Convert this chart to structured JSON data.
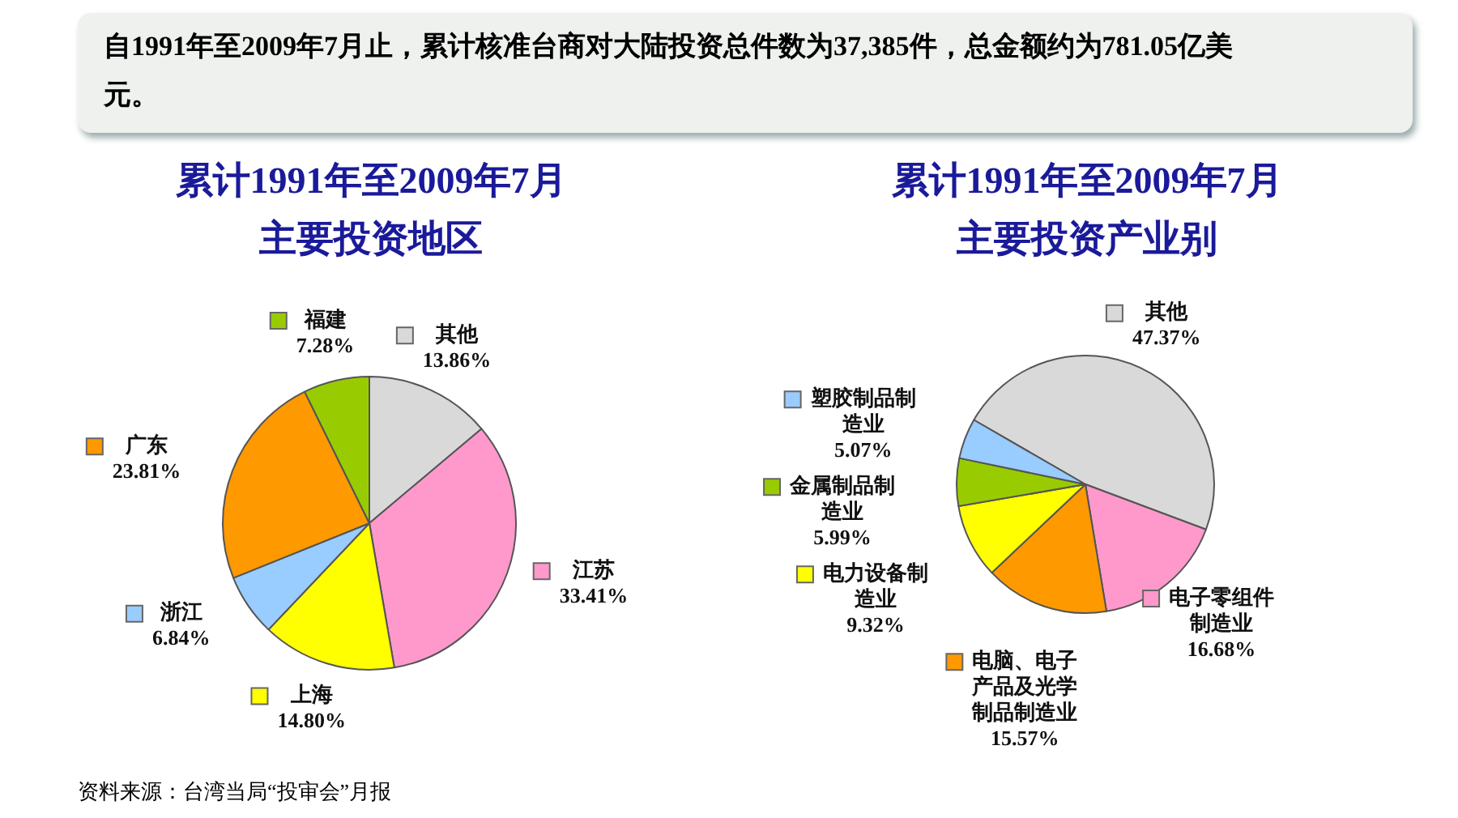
{
  "chart_data": [
    {
      "type": "other",
      "title": "自1991年至2009年7月止，累计核准台商对大陆投资总件数为37,385件，总金额约为781.05亿美元。"
    },
    {
      "type": "pie",
      "title": "累计1991年至2009年7月主要投资地区",
      "categories": [
        "其他",
        "江苏",
        "上海",
        "浙江",
        "广东",
        "福建"
      ],
      "values": [
        13.86,
        33.41,
        14.8,
        6.84,
        23.81,
        7.28
      ],
      "value_labels": [
        "13.86%",
        "33.41%",
        "14.80%",
        "6.84%",
        "23.81%",
        "7.28%"
      ],
      "colors": [
        "#d9d9d9",
        "#ff99cc",
        "#ffff00",
        "#99ccff",
        "#ff9900",
        "#99cc00"
      ],
      "legend": "top left",
      "annotations": [
        "资料来源：台湾当局“投审会”月报"
      ]
    },
    {
      "type": "pie",
      "title": "累计1991年至2009年7月主要投资产业别",
      "categories": [
        "其他",
        "电子零组件制造业",
        "电脑、电子产品及光学制品制造业",
        "电力设备制造业",
        "金属制品制造业",
        "塑胶制品制造业"
      ],
      "values": [
        47.37,
        16.68,
        15.57,
        9.32,
        5.99,
        5.07
      ],
      "value_labels": [
        "47.37%",
        "16.68%",
        "15.57%",
        "9.32%",
        "5.99%",
        "5.07%"
      ],
      "colors": [
        "#d9d9d9",
        "#ff99cc",
        "#ff9900",
        "#ffff00",
        "#99cc00",
        "#99ccff"
      ],
      "legend": "bottom left"
    }
  ]
}
